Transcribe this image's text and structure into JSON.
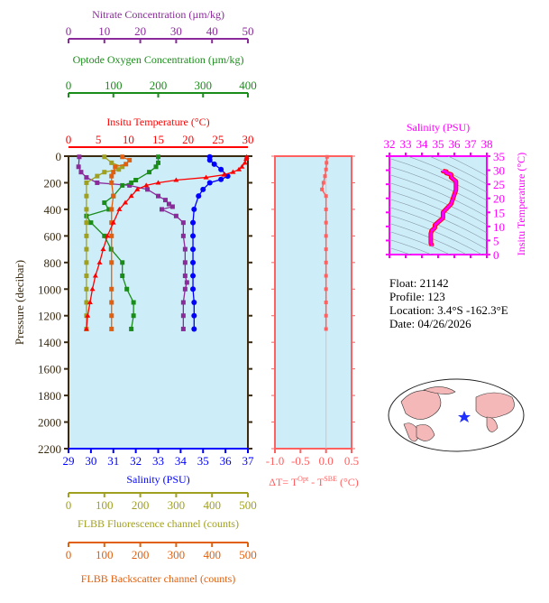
{
  "chart_data": [
    {
      "type": "line",
      "title": "",
      "ylabel": "Pressure (decibar)",
      "ylim": [
        2200,
        0
      ],
      "yticks": [
        0,
        200,
        400,
        600,
        800,
        1000,
        1200,
        1400,
        1600,
        1800,
        2000,
        2200
      ],
      "axes": [
        {
          "key": "temp",
          "label": "Insitu Temperature (°C)",
          "range": [
            0,
            30
          ],
          "ticks": [
            0,
            5,
            10,
            15,
            20,
            25,
            30
          ],
          "color": "#ff0000",
          "position": "top"
        },
        {
          "key": "oxy",
          "label": "Optode Oxygen Concentration (µm/kg)",
          "range": [
            0,
            400
          ],
          "ticks": [
            0,
            100,
            200,
            300,
            400
          ],
          "color": "#1a8c1a",
          "position": "top"
        },
        {
          "key": "nit",
          "label": "Nitrate Concentration (µm/kg)",
          "range": [
            0,
            50
          ],
          "ticks": [
            0,
            10,
            20,
            30,
            40,
            50
          ],
          "color": "#8b2a9b",
          "position": "top"
        },
        {
          "key": "sal",
          "label": "Salinity (PSU)",
          "range": [
            29,
            37
          ],
          "ticks": [
            29,
            30,
            31,
            32,
            33,
            34,
            35,
            36,
            37
          ],
          "color": "#0000ff",
          "position": "bottom"
        },
        {
          "key": "flu",
          "label": "FLBB Fluorescence channel (counts)",
          "range": [
            0,
            500
          ],
          "ticks": [
            0,
            100,
            200,
            300,
            400,
            500
          ],
          "color": "#a0a020",
          "position": "bottom"
        },
        {
          "key": "bbp",
          "label": "FLBB Backscatter channel (counts)",
          "range": [
            0,
            500
          ],
          "ticks": [
            0,
            100,
            200,
            300,
            400,
            500
          ],
          "color": "#e06010",
          "position": "bottom"
        }
      ],
      "series": {
        "temp": [
          [
            5,
            29.8
          ],
          [
            20,
            29.7
          ],
          [
            50,
            29.5
          ],
          [
            80,
            29
          ],
          [
            100,
            28.5
          ],
          [
            120,
            27.5
          ],
          [
            140,
            26
          ],
          [
            160,
            23
          ],
          [
            180,
            18
          ],
          [
            200,
            15
          ],
          [
            220,
            13
          ],
          [
            250,
            11.5
          ],
          [
            300,
            10.5
          ],
          [
            350,
            9.5
          ],
          [
            400,
            8.5
          ],
          [
            500,
            7.5
          ],
          [
            600,
            6.5
          ],
          [
            700,
            5.8
          ],
          [
            800,
            5.2
          ],
          [
            900,
            4.5
          ],
          [
            1000,
            4
          ],
          [
            1100,
            3.6
          ],
          [
            1200,
            3.2
          ],
          [
            1300,
            3
          ]
        ],
        "sal": [
          [
            5,
            35.3
          ],
          [
            30,
            35.3
          ],
          [
            60,
            35.5
          ],
          [
            100,
            35.8
          ],
          [
            150,
            36.1
          ],
          [
            175,
            35.8
          ],
          [
            200,
            35.3
          ],
          [
            250,
            35
          ],
          [
            300,
            34.8
          ],
          [
            400,
            34.6
          ],
          [
            500,
            34.55
          ],
          [
            600,
            34.55
          ],
          [
            700,
            34.55
          ],
          [
            800,
            34.55
          ],
          [
            900,
            34.55
          ],
          [
            1000,
            34.55
          ],
          [
            1100,
            34.6
          ],
          [
            1200,
            34.6
          ],
          [
            1300,
            34.6
          ]
        ],
        "nit": [
          [
            5,
            3
          ],
          [
            80,
            2.8
          ],
          [
            120,
            3.5
          ],
          [
            160,
            5
          ],
          [
            200,
            8
          ],
          [
            220,
            17
          ],
          [
            250,
            22
          ],
          [
            300,
            25
          ],
          [
            330,
            27
          ],
          [
            360,
            28
          ],
          [
            380,
            29
          ],
          [
            400,
            26
          ],
          [
            450,
            30
          ],
          [
            500,
            32
          ],
          [
            600,
            32
          ],
          [
            700,
            32.5
          ],
          [
            800,
            32.5
          ],
          [
            900,
            32.5
          ],
          [
            950,
            33
          ],
          [
            1000,
            32.5
          ],
          [
            1100,
            32
          ],
          [
            1200,
            32
          ],
          [
            1300,
            32
          ]
        ],
        "oxy": [
          [
            5,
            200
          ],
          [
            50,
            200
          ],
          [
            80,
            195
          ],
          [
            120,
            180
          ],
          [
            180,
            150
          ],
          [
            200,
            140
          ],
          [
            220,
            120
          ],
          [
            300,
            100
          ],
          [
            350,
            80
          ],
          [
            400,
            90
          ],
          [
            450,
            40
          ],
          [
            500,
            50
          ],
          [
            600,
            80
          ],
          [
            700,
            95
          ],
          [
            800,
            120
          ],
          [
            900,
            120
          ],
          [
            1000,
            130
          ],
          [
            1100,
            145
          ],
          [
            1200,
            145
          ],
          [
            1300,
            140
          ]
        ],
        "flu": [
          [
            5,
            100
          ],
          [
            50,
            120
          ],
          [
            80,
            150
          ],
          [
            100,
            140
          ],
          [
            120,
            100
          ],
          [
            150,
            80
          ],
          [
            200,
            50
          ],
          [
            300,
            50
          ],
          [
            400,
            50
          ],
          [
            500,
            50
          ],
          [
            600,
            50
          ],
          [
            700,
            50
          ],
          [
            800,
            50
          ],
          [
            900,
            50
          ],
          [
            1000,
            50
          ],
          [
            1100,
            50
          ],
          [
            1200,
            50
          ],
          [
            1300,
            50
          ]
        ],
        "bbp": [
          [
            5,
            150
          ],
          [
            30,
            170
          ],
          [
            60,
            160
          ],
          [
            80,
            130
          ],
          [
            120,
            125
          ],
          [
            150,
            120
          ],
          [
            200,
            120
          ],
          [
            300,
            125
          ],
          [
            400,
            120
          ],
          [
            500,
            120
          ],
          [
            600,
            120
          ],
          [
            800,
            120
          ],
          [
            1000,
            120
          ],
          [
            1100,
            120
          ],
          [
            1200,
            120
          ],
          [
            1300,
            120
          ]
        ]
      }
    },
    {
      "type": "line",
      "xlabel": "ΔT= T",
      "xlabel_sup1": "Opt",
      "xlabel_mid": " - T",
      "xlabel_sup2": "SBE",
      "xlabel_end": " (°C)",
      "xlim": [
        -1.0,
        0.5
      ],
      "xticks": [
        "-1.0",
        "-0.5",
        "0.0",
        "0.5"
      ],
      "color": "#ff6060",
      "values": [
        [
          5,
          0.02
        ],
        [
          50,
          0.01
        ],
        [
          100,
          0.0
        ],
        [
          150,
          -0.02
        ],
        [
          200,
          -0.05
        ],
        [
          250,
          -0.08
        ],
        [
          300,
          0.0
        ],
        [
          400,
          0.0
        ],
        [
          500,
          0.0
        ],
        [
          600,
          0.0
        ],
        [
          700,
          0.0
        ],
        [
          800,
          0.0
        ],
        [
          900,
          0.0
        ],
        [
          1000,
          0.0
        ],
        [
          1100,
          0.0
        ],
        [
          1200,
          0.0
        ],
        [
          1300,
          0.0
        ]
      ]
    },
    {
      "type": "scatter",
      "xlabel": "Salinity (PSU)",
      "ylabel": "Insitu Temperature (°C)",
      "xlim": [
        32,
        38
      ],
      "ylim": [
        0,
        35
      ],
      "xticks": [
        32,
        33,
        34,
        35,
        36,
        37,
        38
      ],
      "yticks": [
        0,
        5,
        10,
        15,
        20,
        25,
        30,
        35
      ],
      "color": "#ff00ff"
    }
  ],
  "info": {
    "float": "Float:  21142",
    "profile": "Profile:  123",
    "location": "Location:  3.4°S  -162.3°E",
    "date": "Date:  04/26/2026"
  }
}
